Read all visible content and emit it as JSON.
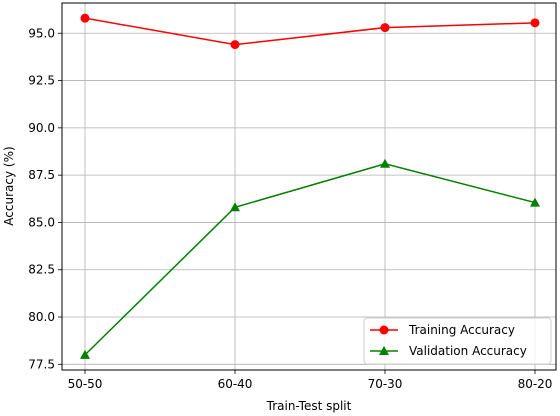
{
  "chart_data": {
    "type": "line",
    "title": "",
    "xlabel": "Train-Test split",
    "ylabel": "Accuracy (%)",
    "categories": [
      "50-50",
      "60-40",
      "70-30",
      "80-20"
    ],
    "ylim": [
      77.2,
      96.6
    ],
    "yticks": [
      "77.5",
      "80.0",
      "82.5",
      "85.0",
      "87.5",
      "90.0",
      "92.5",
      "95.0"
    ],
    "grid": true,
    "legend_position": "lower-right",
    "series": [
      {
        "name": "Training Accuracy",
        "values": [
          95.8,
          94.4,
          95.3,
          95.55
        ],
        "color": "#ff0000",
        "marker": "circle"
      },
      {
        "name": "Validation Accuracy",
        "values": [
          78.0,
          85.8,
          88.1,
          86.05
        ],
        "color": "#008000",
        "marker": "triangle"
      }
    ]
  }
}
